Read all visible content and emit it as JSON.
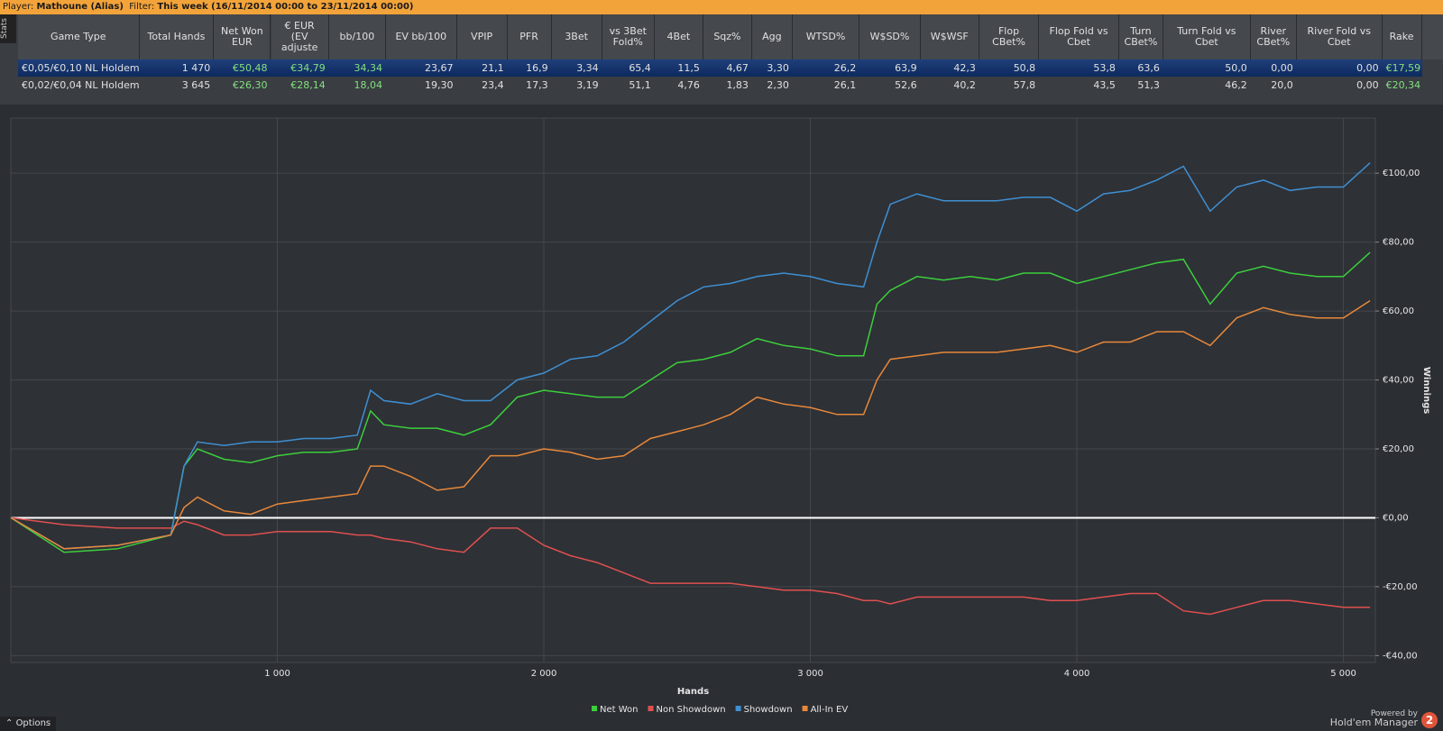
{
  "header": {
    "player_label": "Player:",
    "player": "Mathoune (Alias)",
    "filter_label": "Filter:",
    "filter": "This week (16/11/2014 00:00 to 23/11/2014 00:00)",
    "side_tab": "Stats"
  },
  "table": {
    "columns": [
      "Game Type",
      "Total Hands",
      "Net Won EUR",
      "€ EUR (EV adjuste",
      "bb/100",
      "EV bb/100",
      "VPIP",
      "PFR",
      "3Bet",
      "vs 3Bet Fold%",
      "4Bet",
      "Sqz%",
      "Agg",
      "WTSD%",
      "W$SD%",
      "W$WSF",
      "Flop CBet%",
      "Flop Fold vs Cbet",
      "Turn CBet%",
      "Turn Fold vs Cbet",
      "River CBet%",
      "River Fold vs Cbet",
      "Rake"
    ],
    "rows": [
      [
        "€0,05/€0,10 NL Holdem",
        "1 470",
        "€50,48",
        "€34,79",
        "34,34",
        "23,67",
        "21,1",
        "16,9",
        "3,34",
        "65,4",
        "11,5",
        "4,67",
        "3,30",
        "26,2",
        "63,9",
        "42,3",
        "50,8",
        "53,8",
        "63,6",
        "50,0",
        "0,00",
        "0,00",
        "€17,59"
      ],
      [
        "€0,02/€0,04 NL Holdem",
        "3 645",
        "€26,30",
        "€28,14",
        "18,04",
        "19,30",
        "23,4",
        "17,3",
        "3,19",
        "51,1",
        "4,76",
        "1,83",
        "2,30",
        "26,1",
        "52,6",
        "40,2",
        "57,8",
        "43,5",
        "51,3",
        "46,2",
        "20,0",
        "0,00",
        "€20,34"
      ]
    ]
  },
  "chart_data": {
    "type": "line",
    "xlabel": "Hands",
    "ylabel": "Winnings",
    "grid": true,
    "x": [
      0,
      200,
      400,
      600,
      650,
      700,
      800,
      900,
      1000,
      1100,
      1200,
      1300,
      1350,
      1400,
      1500,
      1600,
      1700,
      1800,
      1900,
      2000,
      2100,
      2200,
      2300,
      2400,
      2500,
      2600,
      2700,
      2800,
      2900,
      3000,
      3100,
      3200,
      3250,
      3300,
      3400,
      3500,
      3600,
      3700,
      3800,
      3900,
      4000,
      4100,
      4200,
      4300,
      4400,
      4500,
      4600,
      4700,
      4800,
      4900,
      5000,
      5100
    ],
    "xlim": [
      0,
      5120
    ],
    "xticks": [
      {
        "value": 1000,
        "label": "1 000"
      },
      {
        "value": 2000,
        "label": "2 000"
      },
      {
        "value": 3000,
        "label": "3 000"
      },
      {
        "value": 4000,
        "label": "4 000"
      },
      {
        "value": 5000,
        "label": "5 000"
      }
    ],
    "ylim": [
      -42,
      116
    ],
    "yticks": [
      {
        "value": 100,
        "label": "€100,00"
      },
      {
        "value": 80,
        "label": "€80,00"
      },
      {
        "value": 60,
        "label": "€60,00"
      },
      {
        "value": 40,
        "label": "€40,00"
      },
      {
        "value": 20,
        "label": "€20,00"
      },
      {
        "value": 0,
        "label": "€0,00"
      },
      {
        "value": -20,
        "label": "-€20,00"
      },
      {
        "value": -40,
        "label": "-€40,00"
      }
    ],
    "series": [
      {
        "name": "Net Won",
        "color": "#3ccf3c",
        "values": [
          0,
          -10,
          -9,
          -5,
          15,
          20,
          17,
          16,
          18,
          19,
          19,
          20,
          31,
          27,
          26,
          26,
          24,
          27,
          35,
          37,
          36,
          35,
          35,
          40,
          45,
          46,
          48,
          52,
          50,
          49,
          47,
          47,
          62,
          66,
          70,
          69,
          70,
          69,
          71,
          71,
          68,
          70,
          72,
          74,
          75,
          62,
          71,
          73,
          71,
          70,
          70,
          77
        ]
      },
      {
        "name": "Non Showdown",
        "color": "#e0504f",
        "values": [
          0,
          -2,
          -3,
          -3,
          -1,
          -2,
          -5,
          -5,
          -4,
          -4,
          -4,
          -5,
          -5,
          -6,
          -7,
          -9,
          -10,
          -3,
          -3,
          -8,
          -11,
          -13,
          -16,
          -19,
          -19,
          -19,
          -19,
          -20,
          -21,
          -21,
          -22,
          -24,
          -24,
          -25,
          -23,
          -23,
          -23,
          -23,
          -23,
          -24,
          -24,
          -23,
          -22,
          -22,
          -27,
          -28,
          -26,
          -24,
          -24,
          -25,
          -26,
          -26
        ]
      },
      {
        "name": "Showdown",
        "color": "#3f8fd2",
        "values": [
          0,
          -9,
          -8,
          -5,
          15,
          22,
          21,
          22,
          22,
          23,
          23,
          24,
          37,
          34,
          33,
          36,
          34,
          34,
          40,
          42,
          46,
          47,
          51,
          57,
          63,
          67,
          68,
          70,
          71,
          70,
          68,
          67,
          80,
          91,
          94,
          92,
          92,
          92,
          93,
          93,
          89,
          94,
          95,
          98,
          102,
          89,
          96,
          98,
          95,
          96,
          96,
          103
        ]
      },
      {
        "name": "All-In EV",
        "color": "#e8883a",
        "values": [
          0,
          -9,
          -8,
          -5,
          3,
          6,
          2,
          1,
          4,
          5,
          6,
          7,
          15,
          15,
          12,
          8,
          9,
          18,
          18,
          20,
          19,
          17,
          18,
          23,
          25,
          27,
          30,
          35,
          33,
          32,
          30,
          30,
          40,
          46,
          47,
          48,
          48,
          48,
          49,
          50,
          48,
          51,
          51,
          54,
          54,
          50,
          58,
          61,
          59,
          58,
          58,
          63
        ]
      }
    ]
  },
  "footer": {
    "options": "Options",
    "powered_by": "Powered by",
    "brand": "Hold'em Manager",
    "version": "2"
  }
}
